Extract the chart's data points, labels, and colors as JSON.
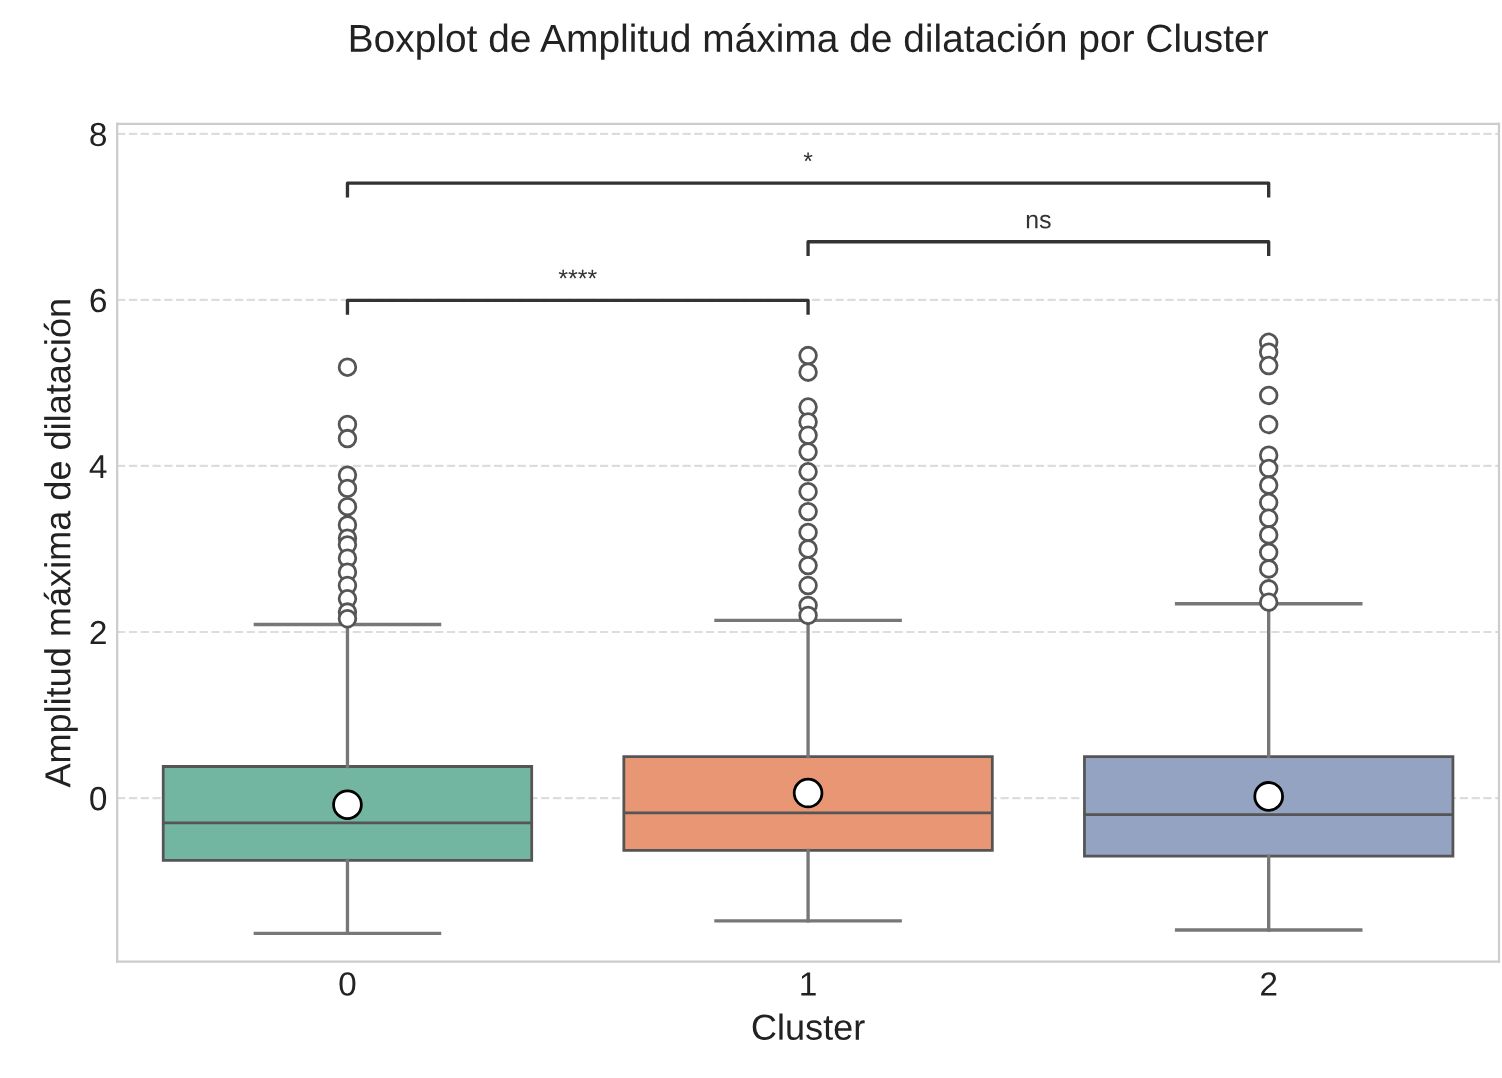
{
  "chart_data": {
    "type": "box",
    "title": "Boxplot de Amplitud máxima de dilatación por Cluster",
    "xlabel": "Cluster",
    "ylabel": "Amplitud máxima de dilatación",
    "categories": [
      "0",
      "1",
      "2"
    ],
    "colors": [
      "#72b6a1",
      "#e99675",
      "#95a3c3"
    ],
    "boxes": [
      {
        "low": -1.63,
        "q1": -0.75,
        "median": -0.3,
        "q3": 0.38,
        "high": 2.09,
        "mean": -0.08,
        "outliers": [
          5.19,
          4.5,
          4.33,
          3.89,
          3.73,
          3.51,
          3.29,
          3.13,
          3.05,
          2.89,
          2.72,
          2.56,
          2.4,
          2.24,
          2.16
        ]
      },
      {
        "low": -1.48,
        "q1": -0.63,
        "median": -0.18,
        "q3": 0.5,
        "high": 2.14,
        "mean": 0.06,
        "outliers": [
          5.33,
          5.13,
          4.71,
          4.53,
          4.37,
          4.17,
          3.93,
          3.69,
          3.45,
          3.2,
          3.0,
          2.8,
          2.56,
          2.32,
          2.2
        ]
      },
      {
        "low": -1.59,
        "q1": -0.7,
        "median": -0.2,
        "q3": 0.5,
        "high": 2.34,
        "mean": 0.02,
        "outliers": [
          5.49,
          5.37,
          5.21,
          4.85,
          4.5,
          4.13,
          3.97,
          3.77,
          3.56,
          3.37,
          3.17,
          2.96,
          2.76,
          2.52,
          2.36
        ]
      }
    ],
    "annotations": [
      "****",
      "ns",
      "*"
    ],
    "ylim": [
      -1.97,
      8.12
    ],
    "yticks": [
      0,
      2,
      4,
      6,
      8
    ],
    "grid": "y"
  }
}
